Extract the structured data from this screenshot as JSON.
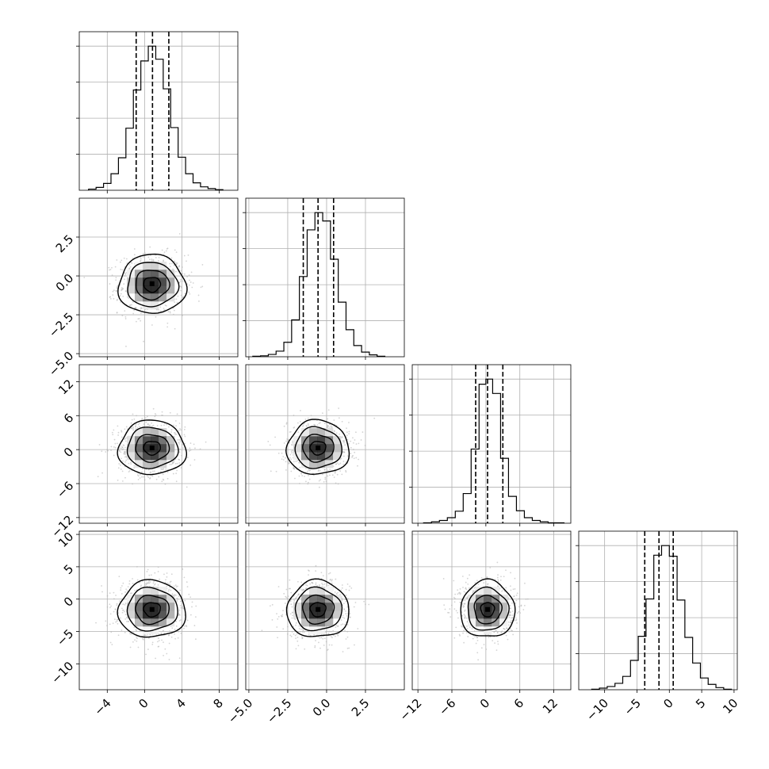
{
  "chart_data": {
    "type": "corner",
    "grid": true,
    "quantiles": [
      0.16,
      0.5,
      0.84
    ],
    "parameters": [
      {
        "range": [
          -7,
          10
        ],
        "hist": {
          "edges": [
            -6.0,
            -5.2,
            -4.4,
            -3.6,
            -2.8,
            -2.0,
            -1.2,
            -0.4,
            0.4,
            1.2,
            2.0,
            2.8,
            3.6,
            4.4,
            5.2,
            6.0,
            6.8,
            7.6,
            8.4
          ],
          "counts": [
            2,
            5,
            12,
            29,
            57,
            109,
            176,
            227,
            253,
            230,
            178,
            110,
            58,
            29,
            13,
            6,
            3,
            1
          ]
        },
        "quantile_values": [
          -0.9,
          0.85,
          2.6
        ],
        "ticks": [
          -4,
          0,
          4,
          8
        ],
        "tick_labels": [
          "−4",
          "0",
          "4",
          "8"
        ]
      },
      {
        "range": [
          -5.2,
          5.0
        ],
        "hist": {
          "edges": [
            -4.75,
            -4.25,
            -3.75,
            -3.25,
            -2.75,
            -2.25,
            -1.75,
            -1.25,
            -0.75,
            -0.25,
            0.25,
            0.75,
            1.25,
            1.75,
            2.25,
            2.75,
            3.25,
            3.75
          ],
          "counts": [
            1,
            2,
            5,
            12,
            31,
            79,
            172,
            272,
            309,
            291,
            209,
            117,
            58,
            24,
            10,
            4,
            1
          ]
        },
        "quantile_values": [
          -1.5,
          -0.55,
          0.45
        ],
        "ticks": [
          -5.0,
          -2.5,
          0.0,
          2.5
        ],
        "tick_labels": [
          "−5.0",
          "−2.5",
          "0.0",
          "2.5"
        ]
      },
      {
        "range": [
          -13,
          15
        ],
        "hist": {
          "edges": [
            -11.0,
            -9.6,
            -8.2,
            -6.8,
            -5.4,
            -4.0,
            -2.6,
            -1.2,
            0.0,
            1.2,
            2.6,
            4.0,
            5.4,
            6.8,
            8.2,
            9.6,
            11.0,
            12.4,
            13.8
          ],
          "counts": [
            1,
            3,
            6,
            12,
            26,
            64,
            160,
            300,
            311,
            280,
            140,
            58,
            27,
            12,
            6,
            3,
            1,
            1
          ]
        },
        "quantile_values": [
          -1.8,
          0.3,
          3.0
        ],
        "ticks": [
          -12,
          -6,
          0,
          6,
          12
        ],
        "tick_labels": [
          "−12",
          "−6",
          "0",
          "6",
          "12"
        ]
      },
      {
        "range": [
          -14,
          10.5
        ],
        "hist": {
          "edges": [
            -12.0,
            -10.8,
            -9.6,
            -8.4,
            -7.2,
            -6.0,
            -4.8,
            -3.6,
            -2.4,
            -1.2,
            0.0,
            1.2,
            2.4,
            3.6,
            4.8,
            6.0,
            7.2,
            8.4,
            9.6
          ],
          "counts": [
            1,
            3,
            6,
            12,
            25,
            55,
            100,
            170,
            252,
            270,
            250,
            168,
            98,
            50,
            22,
            10,
            4,
            1
          ]
        },
        "quantile_values": [
          -3.8,
          -1.6,
          0.6
        ],
        "ticks": [
          -10,
          -5,
          0,
          5,
          10
        ],
        "tick_labels": [
          "−10",
          "−5",
          "0",
          "5",
          "10"
        ]
      }
    ],
    "pairs": [
      {
        "x": 0,
        "y": 1,
        "center": [
          0.8,
          -0.55
        ],
        "sigma": [
          1.8,
          0.95
        ],
        "rho": 0.0,
        "peak": [
          0.8,
          -0.5
        ]
      },
      {
        "x": 0,
        "y": 2,
        "center": [
          0.8,
          0.3
        ],
        "sigma": [
          1.8,
          2.4
        ],
        "rho": 0.0,
        "peak": [
          0.8,
          0.3
        ]
      },
      {
        "x": 1,
        "y": 2,
        "center": [
          -0.55,
          0.3
        ],
        "sigma": [
          1.0,
          2.4
        ],
        "rho": 0.0,
        "peak": [
          -0.55,
          0.3
        ]
      },
      {
        "x": 0,
        "y": 3,
        "center": [
          0.8,
          -1.6
        ],
        "sigma": [
          1.8,
          2.2
        ],
        "rho": 0.0,
        "peak": [
          0.8,
          -1.6
        ]
      },
      {
        "x": 1,
        "y": 3,
        "center": [
          -0.55,
          -1.6
        ],
        "sigma": [
          1.0,
          2.2
        ],
        "rho": 0.0,
        "peak": [
          -0.55,
          -1.6
        ]
      },
      {
        "x": 2,
        "y": 3,
        "center": [
          0.3,
          -1.6
        ],
        "sigma": [
          2.4,
          2.2
        ],
        "rho": 0.0,
        "peak": [
          0.3,
          -1.6
        ]
      }
    ],
    "contour_levels_sigma": [
      0.5,
      1.0,
      1.5,
      2.0
    ],
    "colors": {
      "contour": "#000000",
      "points": "#b0b0b0",
      "density_dark": "#000000",
      "density_light": "#ffffff"
    }
  }
}
